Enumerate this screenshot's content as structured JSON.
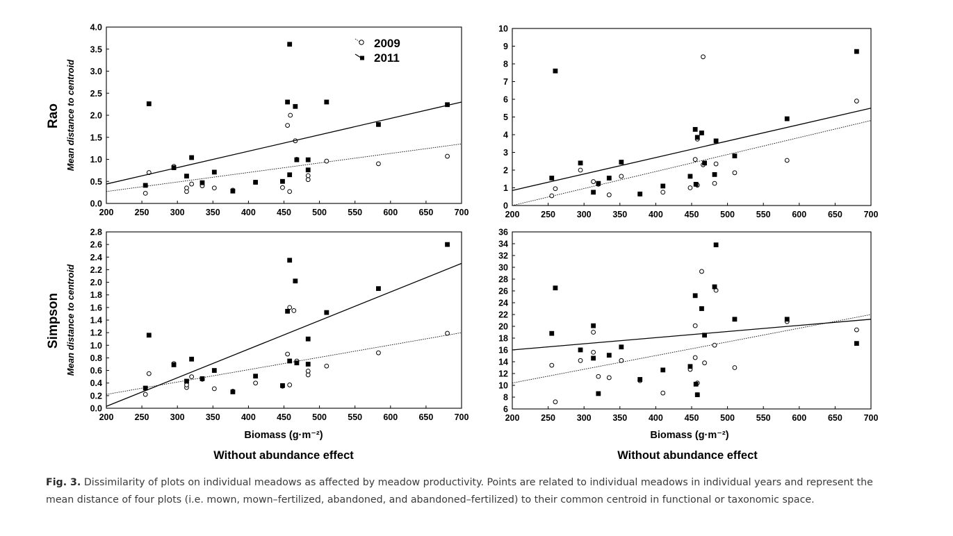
{
  "figure": {
    "row_labels": [
      "Rao",
      "Simpson"
    ],
    "xlabel": "Biomass (g·m⁻²)",
    "subtitle": "Without abundance effect",
    "caption_label": "Fig. 3.",
    "caption_text": "Dissimilarity of plots on individual meadows as affected by meadow productivity. Points are related to individual meadows in individual years and represent the mean distance of four plots (i.e. mown, mown–fertilized, abandoned, and abandoned–fertilized) to their common centroid in functional or taxonomic space.",
    "legend": [
      {
        "name": "2009",
        "marker": "open-circle",
        "line": "dotted"
      },
      {
        "name": "2011",
        "marker": "filled-square",
        "line": "solid"
      }
    ],
    "colors": {
      "axis": "#000000",
      "marker": "#000000",
      "caption": "#3a3a3a"
    }
  },
  "chart_data": [
    {
      "type": "scatter",
      "panel": "top-left",
      "ylabel": "Mean distance to centroid",
      "xlabel": "",
      "xlim": [
        200,
        700
      ],
      "ylim": [
        0,
        4.0
      ],
      "xticks": [
        200,
        250,
        300,
        350,
        400,
        450,
        500,
        550,
        600,
        650,
        700
      ],
      "yticks": [
        "0.0",
        "0.5",
        "1.0",
        "1.5",
        "2.0",
        "2.5",
        "3.0",
        "3.5",
        "4.0"
      ],
      "series": [
        {
          "name": "2009",
          "marker": "open-circle",
          "x": [
            255,
            260,
            295,
            313,
            313,
            320,
            335,
            352,
            378,
            410,
            448,
            455,
            458,
            459,
            466,
            468,
            484,
            484,
            510,
            583,
            680
          ],
          "y": [
            0.23,
            0.7,
            0.84,
            0.27,
            0.35,
            0.44,
            0.4,
            0.35,
            0.3,
            0.48,
            0.36,
            1.77,
            0.27,
            2.0,
            1.42,
            1.0,
            0.54,
            0.63,
            0.96,
            0.9,
            1.07
          ],
          "fit": {
            "x": [
              200,
              700
            ],
            "y": [
              0.27,
              1.35
            ]
          }
        },
        {
          "name": "2011",
          "marker": "filled-square",
          "x": [
            255,
            260,
            295,
            313,
            320,
            335,
            352,
            378,
            410,
            448,
            455,
            458,
            458,
            466,
            468,
            484,
            484,
            510,
            583,
            680
          ],
          "y": [
            0.41,
            2.26,
            0.81,
            0.62,
            1.04,
            0.47,
            0.71,
            0.28,
            0.48,
            0.5,
            2.3,
            0.65,
            3.61,
            2.2,
            0.99,
            0.76,
            0.99,
            2.3,
            1.79,
            2.24
          ],
          "fit": {
            "x": [
              200,
              700
            ],
            "y": [
              0.44,
              2.3
            ]
          }
        }
      ]
    },
    {
      "type": "scatter",
      "panel": "top-right",
      "ylabel": "",
      "xlabel": "",
      "xlim": [
        200,
        700
      ],
      "ylim": [
        0,
        10
      ],
      "xticks": [
        200,
        250,
        300,
        350,
        400,
        450,
        500,
        550,
        600,
        650,
        700
      ],
      "yticks": [
        "0",
        "1",
        "2",
        "3",
        "4",
        "5",
        "6",
        "7",
        "8",
        "9",
        "10"
      ],
      "series": [
        {
          "name": "2009",
          "marker": "open-circle",
          "x": [
            255,
            260,
            295,
            313,
            320,
            335,
            352,
            378,
            410,
            448,
            455,
            458,
            458,
            466,
            466,
            482,
            484,
            510,
            583,
            680
          ],
          "y": [
            0.55,
            0.95,
            2.0,
            1.35,
            1.2,
            0.6,
            1.65,
            0.65,
            0.75,
            1.0,
            2.6,
            1.15,
            3.75,
            8.4,
            2.3,
            1.25,
            2.35,
            1.85,
            2.55,
            5.9
          ],
          "fit": {
            "x": [
              200,
              700
            ],
            "y": [
              0.0,
              4.8
            ]
          }
        },
        {
          "name": "2011",
          "marker": "filled-square",
          "x": [
            255,
            260,
            295,
            313,
            320,
            335,
            352,
            378,
            410,
            448,
            455,
            456,
            458,
            464,
            468,
            482,
            484,
            510,
            583,
            680
          ],
          "y": [
            1.55,
            7.6,
            2.4,
            0.75,
            1.25,
            1.55,
            2.45,
            0.65,
            1.1,
            1.65,
            4.3,
            1.2,
            3.85,
            4.1,
            2.4,
            1.75,
            3.65,
            2.8,
            4.9,
            8.7
          ],
          "fit": {
            "x": [
              200,
              700
            ],
            "y": [
              0.85,
              5.5
            ]
          }
        }
      ]
    },
    {
      "type": "scatter",
      "panel": "bottom-left",
      "ylabel": "Mean distance to centroid",
      "xlabel": "Biomass (g·m⁻²)",
      "xlim": [
        200,
        700
      ],
      "ylim": [
        0,
        2.8
      ],
      "xticks": [
        200,
        250,
        300,
        350,
        400,
        450,
        500,
        550,
        600,
        650,
        700
      ],
      "yticks": [
        "0.0",
        "0.2",
        "0.4",
        "0.6",
        "0.8",
        "1.0",
        "1.2",
        "1.4",
        "1.6",
        "1.8",
        "2.0",
        "2.2",
        "2.4",
        "2.6",
        "2.8"
      ],
      "series": [
        {
          "name": "2009",
          "marker": "open-circle",
          "x": [
            255,
            260,
            295,
            313,
            313,
            320,
            335,
            352,
            378,
            410,
            448,
            455,
            458,
            458,
            464,
            468,
            484,
            484,
            510,
            583,
            680
          ],
          "y": [
            0.22,
            0.55,
            0.71,
            0.33,
            0.37,
            0.5,
            0.46,
            0.31,
            0.27,
            0.4,
            0.35,
            0.86,
            0.37,
            1.6,
            1.55,
            0.75,
            0.53,
            0.59,
            0.67,
            0.88,
            1.19
          ],
          "fit": {
            "x": [
              200,
              700
            ],
            "y": [
              0.22,
              1.2
            ]
          }
        },
        {
          "name": "2011",
          "marker": "filled-square",
          "x": [
            255,
            260,
            295,
            313,
            320,
            335,
            352,
            378,
            410,
            448,
            455,
            458,
            458,
            466,
            468,
            484,
            484,
            510,
            583,
            680
          ],
          "y": [
            0.32,
            1.16,
            0.69,
            0.43,
            0.78,
            0.47,
            0.6,
            0.26,
            0.51,
            0.36,
            1.54,
            0.75,
            2.35,
            2.02,
            0.72,
            0.7,
            1.1,
            1.52,
            1.9,
            2.6
          ],
          "fit": {
            "x": [
              200,
              700
            ],
            "y": [
              0.03,
              2.3
            ]
          }
        }
      ]
    },
    {
      "type": "scatter",
      "panel": "bottom-right",
      "ylabel": "",
      "xlabel": "Biomass (g·m⁻²)",
      "xlim": [
        200,
        700
      ],
      "ylim": [
        6,
        36
      ],
      "xticks": [
        200,
        250,
        300,
        350,
        400,
        450,
        500,
        550,
        600,
        650,
        700
      ],
      "yticks": [
        "6",
        "8",
        "10",
        "12",
        "14",
        "16",
        "18",
        "20",
        "22",
        "24",
        "26",
        "28",
        "30",
        "32",
        "34",
        "36"
      ],
      "series": [
        {
          "name": "2009",
          "marker": "open-circle",
          "x": [
            255,
            260,
            295,
            313,
            313,
            320,
            335,
            352,
            378,
            410,
            448,
            455,
            455,
            458,
            458,
            464,
            468,
            482,
            484,
            510,
            583,
            680
          ],
          "y": [
            13.4,
            7.2,
            14.2,
            15.6,
            19.0,
            11.5,
            11.3,
            14.2,
            10.8,
            8.7,
            12.7,
            20.1,
            14.7,
            8.4,
            10.4,
            29.3,
            13.8,
            16.8,
            26.1,
            13.0,
            20.8,
            19.4
          ],
          "fit": {
            "x": [
              200,
              700
            ],
            "y": [
              10.4,
              22.0
            ]
          }
        },
        {
          "name": "2011",
          "marker": "filled-square",
          "x": [
            255,
            260,
            295,
            313,
            313,
            320,
            335,
            352,
            378,
            410,
            448,
            455,
            456,
            458,
            464,
            468,
            482,
            484,
            510,
            583,
            680
          ],
          "y": [
            18.8,
            26.5,
            16.0,
            20.1,
            14.6,
            8.6,
            15.1,
            16.5,
            11.0,
            12.6,
            13.2,
            25.2,
            10.2,
            8.4,
            23.0,
            18.5,
            26.7,
            33.8,
            21.2,
            21.2,
            17.1
          ],
          "fit": {
            "x": [
              200,
              700
            ],
            "y": [
              16.0,
              21.2
            ]
          }
        }
      ]
    }
  ]
}
